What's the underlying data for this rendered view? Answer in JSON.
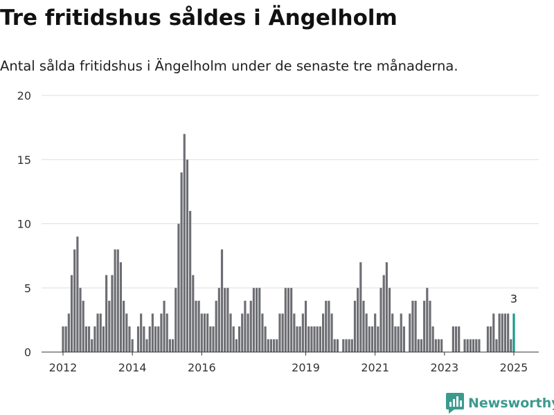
{
  "header": {
    "title": "Tre fritidshus såldes i Ängelholm",
    "subtitle": "Antal sålda fritidshus i Ängelholm under de senaste tre månaderna."
  },
  "brand": {
    "name": "Newsworthy",
    "icon": "newsworthy-logo-icon",
    "color": "#3b9a8e"
  },
  "colors": {
    "bar": "#6d6e73",
    "highlight": "#1a9a8c",
    "grid": "#dddddd",
    "axis": "#333333"
  },
  "chart_data": {
    "type": "bar",
    "x_axis": "month",
    "start_month": "2012-01",
    "xticks": [
      "2012",
      "2014",
      "2016",
      "2019",
      "2021",
      "2023",
      "2025"
    ],
    "yticks": [
      "0",
      "5",
      "10",
      "15",
      "20"
    ],
    "ylim": [
      0,
      20
    ],
    "grid": true,
    "values": [
      2,
      2,
      3,
      6,
      8,
      9,
      5,
      4,
      2,
      2,
      1,
      2,
      3,
      3,
      2,
      6,
      4,
      6,
      8,
      8,
      7,
      4,
      3,
      2,
      1,
      0,
      2,
      3,
      2,
      1,
      2,
      3,
      2,
      2,
      3,
      4,
      3,
      1,
      1,
      5,
      10,
      14,
      17,
      15,
      11,
      6,
      4,
      4,
      3,
      3,
      3,
      2,
      2,
      4,
      5,
      8,
      5,
      5,
      3,
      2,
      1,
      2,
      3,
      4,
      3,
      4,
      5,
      5,
      5,
      3,
      2,
      1,
      1,
      1,
      1,
      3,
      3,
      5,
      5,
      5,
      3,
      2,
      2,
      3,
      4,
      2,
      2,
      2,
      2,
      2,
      3,
      4,
      4,
      3,
      1,
      1,
      0,
      1,
      1,
      1,
      1,
      4,
      5,
      7,
      4,
      3,
      2,
      2,
      3,
      2,
      5,
      6,
      7,
      5,
      3,
      2,
      2,
      3,
      2,
      0,
      3,
      4,
      4,
      1,
      1,
      4,
      5,
      4,
      2,
      1,
      1,
      1,
      0,
      0,
      0,
      2,
      2,
      2,
      0,
      1,
      1,
      1,
      1,
      1,
      1,
      0,
      0,
      2,
      2,
      3,
      1,
      3,
      3,
      3,
      3,
      1,
      3
    ],
    "highlight_label": "3"
  }
}
